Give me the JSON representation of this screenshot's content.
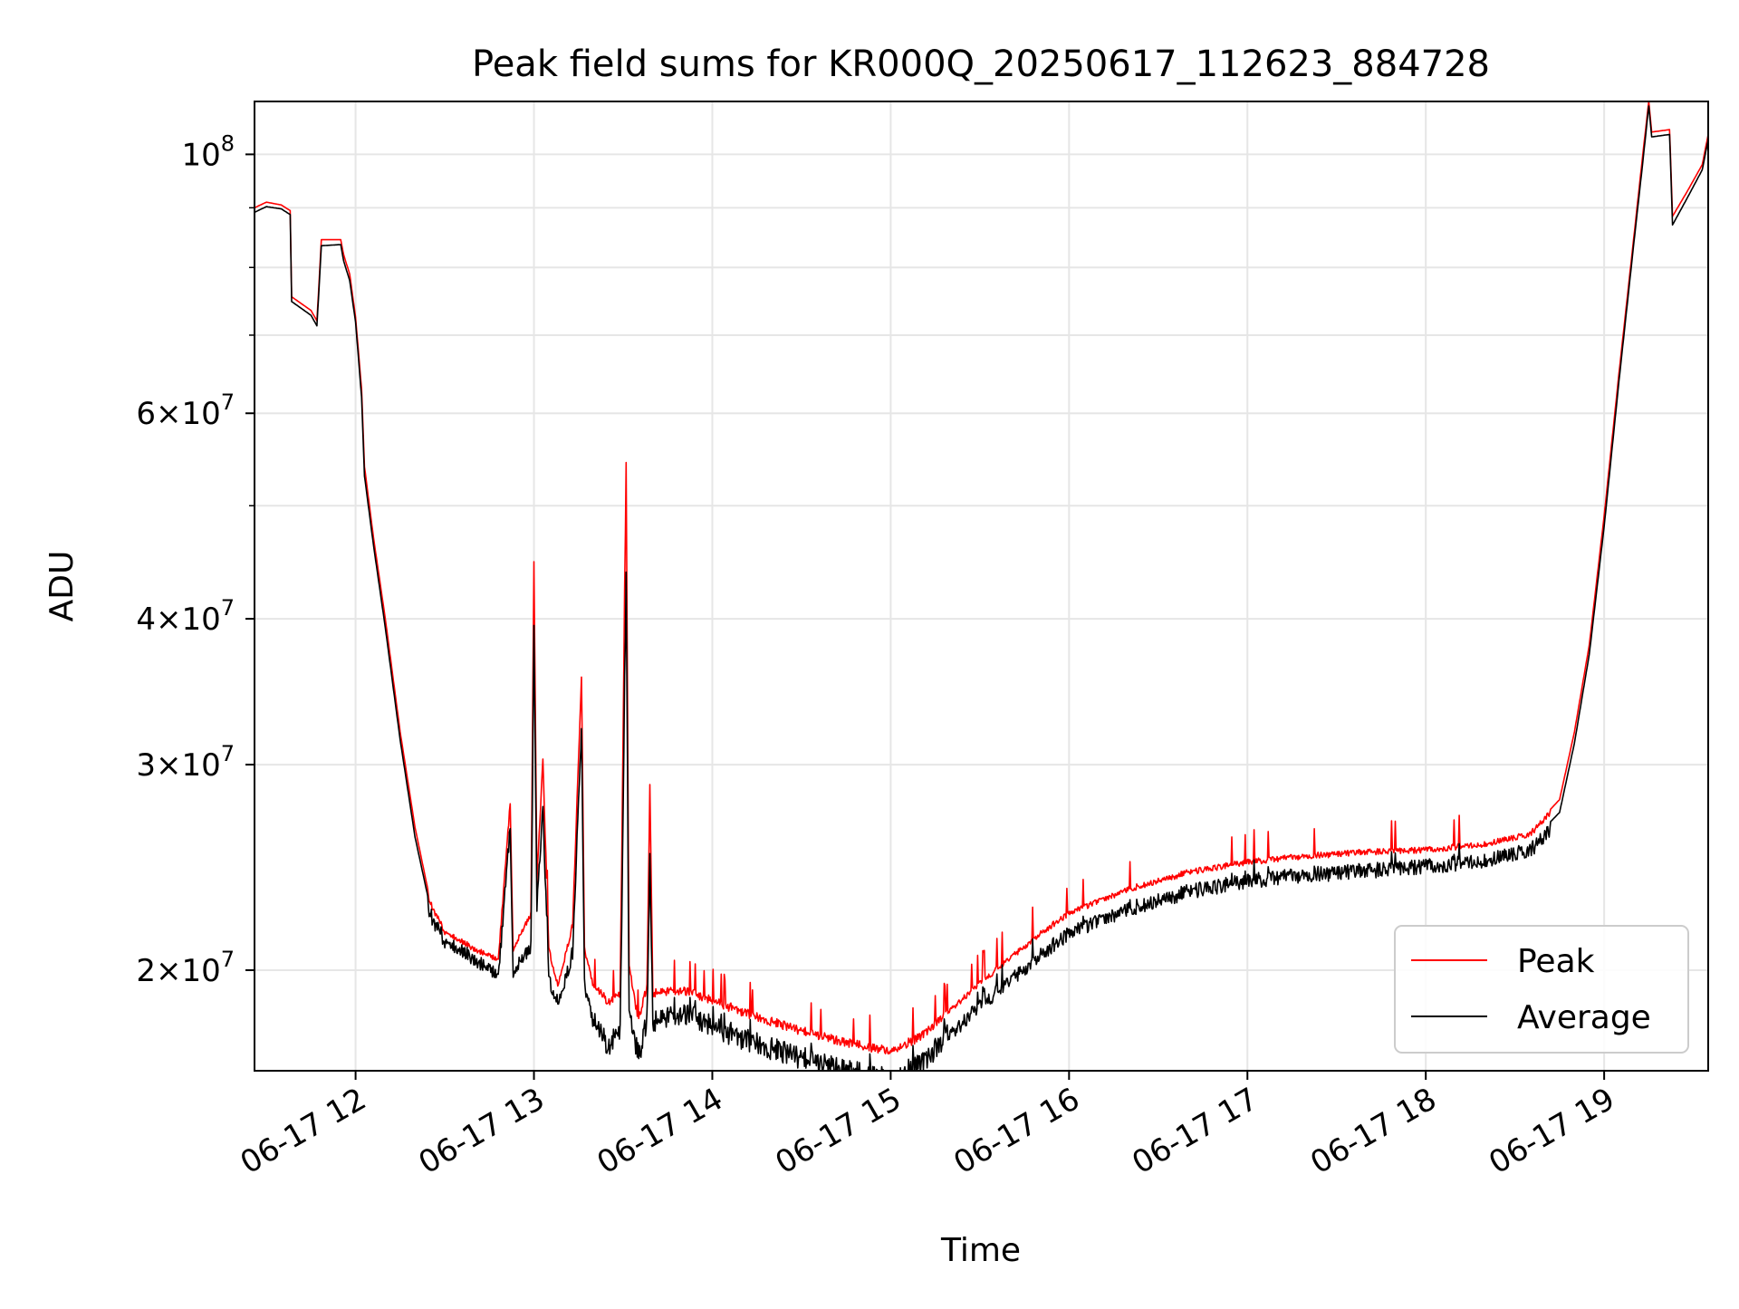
{
  "chart_data": {
    "type": "line",
    "title": "Peak field sums for KR000Q_20250617_112623_884728",
    "xlabel": "Time",
    "ylabel": "ADU",
    "x_range": [
      "06-17 11:26",
      "06-17 19:35"
    ],
    "ylim": [
      16400000,
      111000000
    ],
    "y_scale": "log",
    "grid": true,
    "x_ticks": [
      "06-17 12",
      "06-17 13",
      "06-17 14",
      "06-17 15",
      "06-17 16",
      "06-17 17",
      "06-17 18",
      "06-17 19"
    ],
    "y_ticks": [
      {
        "value": 20000000,
        "mantissa": "2",
        "exponent": "7"
      },
      {
        "value": 30000000,
        "mantissa": "3",
        "exponent": "7"
      },
      {
        "value": 40000000,
        "mantissa": "4",
        "exponent": "7"
      },
      {
        "value": 60000000,
        "mantissa": "6",
        "exponent": "7"
      },
      {
        "value": 100000000,
        "mantissa": "",
        "exponent": "8"
      }
    ],
    "y_minor_ticks": [
      50000000,
      70000000,
      80000000,
      90000000
    ],
    "legend": {
      "position": "lower-right",
      "entries": [
        "Peak",
        "Average"
      ]
    },
    "series": [
      {
        "name": "Peak",
        "color": "#ff0000",
        "points": [
          [
            "06-17 11:26",
            90000000
          ],
          [
            "06-17 11:30",
            91000000
          ],
          [
            "06-17 11:35",
            90500000
          ],
          [
            "06-17 11:38",
            89500000
          ],
          [
            "06-17 11:38.5",
            75500000
          ],
          [
            "06-17 11:45",
            73500000
          ],
          [
            "06-17 11:47",
            72000000
          ],
          [
            "06-17 11:48.5",
            84500000
          ],
          [
            "06-17 11:55",
            84500000
          ],
          [
            "06-17 11:56",
            82000000
          ],
          [
            "06-17 11:58",
            79000000
          ],
          [
            "06-17 12:00",
            72500000
          ],
          [
            "06-17 12:02",
            63000000
          ],
          [
            "06-17 12:03",
            54000000
          ],
          [
            "06-17 12:06",
            47000000
          ],
          [
            "06-17 12:10",
            40000000
          ],
          [
            "06-17 12:15",
            32000000
          ],
          [
            "06-17 12:20",
            26500000
          ],
          [
            "06-17 12:25",
            23000000
          ],
          [
            "06-17 12:30",
            21700000
          ],
          [
            "06-17 12:40",
            21000000
          ],
          [
            "06-17 12:48",
            20500000
          ],
          [
            "06-17 12:52",
            28000000
          ],
          [
            "06-17 12:53",
            21000000
          ],
          [
            "06-17 12:59",
            22500000
          ],
          [
            "06-17 13:00",
            45000000
          ],
          [
            "06-17 13:01",
            24000000
          ],
          [
            "06-17 13:03",
            30500000
          ],
          [
            "06-17 13:05",
            21000000
          ],
          [
            "06-17 13:08",
            19500000
          ],
          [
            "06-17 13:13",
            22000000
          ],
          [
            "06-17 13:16",
            36000000
          ],
          [
            "06-17 13:17",
            21000000
          ],
          [
            "06-17 13:20",
            19500000
          ],
          [
            "06-17 13:25",
            19000000
          ],
          [
            "06-17 13:29",
            19200000
          ],
          [
            "06-17 13:31",
            55000000
          ],
          [
            "06-17 13:32",
            20500000
          ],
          [
            "06-17 13:35",
            18300000
          ],
          [
            "06-17 13:38",
            19500000
          ],
          [
            "06-17 13:39",
            29000000
          ],
          [
            "06-17 13:40",
            19300000
          ],
          [
            "06-17 13:50",
            19400000
          ],
          [
            "06-17 14:00",
            19000000
          ],
          [
            "06-17 14:15",
            18400000
          ],
          [
            "06-17 14:30",
            17900000
          ],
          [
            "06-17 14:45",
            17500000
          ],
          [
            "06-17 15:00",
            17200000
          ],
          [
            "06-17 15:10",
            17700000
          ],
          [
            "06-17 15:20",
            18600000
          ],
          [
            "06-17 15:30",
            19600000
          ],
          [
            "06-17 15:40",
            20600000
          ],
          [
            "06-17 15:50",
            21600000
          ],
          [
            "06-17 16:00",
            22500000
          ],
          [
            "06-17 16:20",
            23600000
          ],
          [
            "06-17 16:40",
            24400000
          ],
          [
            "06-17 17:00",
            24900000
          ],
          [
            "06-17 17:20",
            25200000
          ],
          [
            "06-17 17:40",
            25400000
          ],
          [
            "06-17 18:00",
            25500000
          ],
          [
            "06-17 18:20",
            25800000
          ],
          [
            "06-17 18:35",
            26300000
          ],
          [
            "06-17 18:45",
            28000000
          ],
          [
            "06-17 18:50",
            32000000
          ],
          [
            "06-17 18:55",
            38000000
          ],
          [
            "06-17 19:00",
            49000000
          ],
          [
            "06-17 19:05",
            65000000
          ],
          [
            "06-17 19:10",
            85000000
          ],
          [
            "06-17 19:13",
            100000000
          ],
          [
            "06-17 19:15",
            111000000
          ],
          [
            "06-17 19:16",
            104500000
          ],
          [
            "06-17 19:22",
            105000000
          ],
          [
            "06-17 19:23",
            88500000
          ],
          [
            "06-17 19:28",
            93000000
          ],
          [
            "06-17 19:33",
            98000000
          ],
          [
            "06-17 19:35",
            104000000
          ]
        ]
      },
      {
        "name": "Average",
        "color": "#000000",
        "points": [
          [
            "06-17 11:26",
            89200000
          ],
          [
            "06-17 11:30",
            90200000
          ],
          [
            "06-17 11:35",
            89800000
          ],
          [
            "06-17 11:38",
            88800000
          ],
          [
            "06-17 11:38.5",
            74800000
          ],
          [
            "06-17 11:45",
            72800000
          ],
          [
            "06-17 11:47",
            71300000
          ],
          [
            "06-17 11:48.5",
            83500000
          ],
          [
            "06-17 11:55",
            83700000
          ],
          [
            "06-17 11:56",
            81000000
          ],
          [
            "06-17 11:58",
            78000000
          ],
          [
            "06-17 12:00",
            71800000
          ],
          [
            "06-17 12:02",
            62000000
          ],
          [
            "06-17 12:03",
            53000000
          ],
          [
            "06-17 12:06",
            46300000
          ],
          [
            "06-17 12:10",
            39300000
          ],
          [
            "06-17 12:15",
            31500000
          ],
          [
            "06-17 12:20",
            26000000
          ],
          [
            "06-17 12:25",
            22700000
          ],
          [
            "06-17 12:30",
            21500000
          ],
          [
            "06-17 12:40",
            20800000
          ],
          [
            "06-17 12:48",
            20000000
          ],
          [
            "06-17 12:52",
            27000000
          ],
          [
            "06-17 12:53",
            20300000
          ],
          [
            "06-17 12:59",
            21300000
          ],
          [
            "06-17 13:00",
            40000000
          ],
          [
            "06-17 13:01",
            23000000
          ],
          [
            "06-17 13:03",
            28000000
          ],
          [
            "06-17 13:05",
            20000000
          ],
          [
            "06-17 13:08",
            19000000
          ],
          [
            "06-17 13:13",
            21000000
          ],
          [
            "06-17 13:16",
            33000000
          ],
          [
            "06-17 13:17",
            19800000
          ],
          [
            "06-17 13:20",
            18300000
          ],
          [
            "06-17 13:25",
            17700000
          ],
          [
            "06-17 13:29",
            18000000
          ],
          [
            "06-17 13:31",
            45000000
          ],
          [
            "06-17 13:32",
            19200000
          ],
          [
            "06-17 13:35",
            17200000
          ],
          [
            "06-17 13:38",
            18500000
          ],
          [
            "06-17 13:39",
            25500000
          ],
          [
            "06-17 13:40",
            18500000
          ],
          [
            "06-17 13:50",
            18800000
          ],
          [
            "06-17 14:00",
            18300000
          ],
          [
            "06-17 14:15",
            17700000
          ],
          [
            "06-17 14:30",
            17200000
          ],
          [
            "06-17 14:45",
            16800000
          ],
          [
            "06-17 15:00",
            16500000
          ],
          [
            "06-17 15:10",
            17000000
          ],
          [
            "06-17 15:20",
            17900000
          ],
          [
            "06-17 15:30",
            18900000
          ],
          [
            "06-17 15:40",
            19900000
          ],
          [
            "06-17 15:50",
            20900000
          ],
          [
            "06-17 16:00",
            21800000
          ],
          [
            "06-17 16:20",
            22900000
          ],
          [
            "06-17 16:40",
            23700000
          ],
          [
            "06-17 17:00",
            24200000
          ],
          [
            "06-17 17:20",
            24500000
          ],
          [
            "06-17 17:40",
            24700000
          ],
          [
            "06-17 18:00",
            24900000
          ],
          [
            "06-17 18:20",
            25200000
          ],
          [
            "06-17 18:35",
            25700000
          ],
          [
            "06-17 18:45",
            27300000
          ],
          [
            "06-17 18:50",
            31300000
          ],
          [
            "06-17 18:55",
            37300000
          ],
          [
            "06-17 19:00",
            48000000
          ],
          [
            "06-17 19:05",
            64000000
          ],
          [
            "06-17 19:10",
            84000000
          ],
          [
            "06-17 19:13",
            98500000
          ],
          [
            "06-17 19:15",
            110000000
          ],
          [
            "06-17 19:16",
            103500000
          ],
          [
            "06-17 19:22",
            104000000
          ],
          [
            "06-17 19:23",
            87000000
          ],
          [
            "06-17 19:28",
            91800000
          ],
          [
            "06-17 19:33",
            97000000
          ],
          [
            "06-17 19:35",
            103000000
          ]
        ]
      }
    ]
  }
}
